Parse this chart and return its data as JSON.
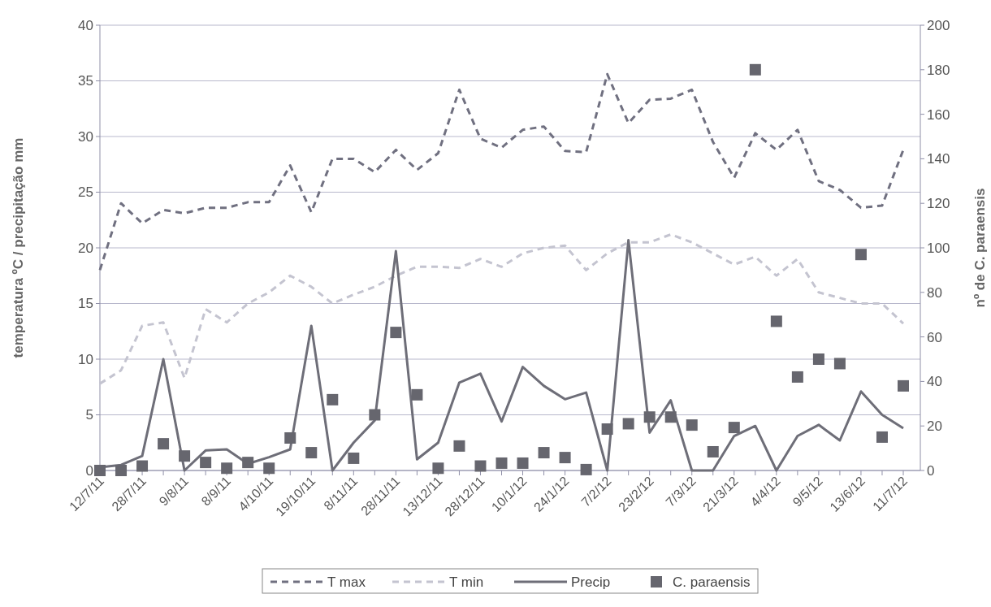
{
  "chart_data": {
    "type": "line",
    "ylabel": "temperatura ºC / precipitação mm",
    "y2label": "nº de C. paraensis",
    "categories": [
      "12/7/11",
      null,
      "28/7/11",
      null,
      "9/8/11",
      null,
      "8/9/11",
      null,
      "4/10/11",
      null,
      "19/10/11",
      null,
      "8/11/11",
      null,
      "28/11/11",
      null,
      "13/12/11",
      null,
      "28/12/11",
      null,
      "10/1/12",
      null,
      "24/1/12",
      null,
      "7/2/12",
      null,
      "23/2/12",
      null,
      "7/3/12",
      null,
      "21/3/12",
      null,
      "4/4/12",
      null,
      "9/5/12",
      null,
      "13/6/12",
      null,
      "11/7/12"
    ],
    "ylim": [
      0,
      40
    ],
    "yticks": [
      0,
      5,
      10,
      15,
      20,
      25,
      30,
      35,
      40
    ],
    "y2lim": [
      0,
      200
    ],
    "y2ticks": [
      0,
      20,
      40,
      60,
      80,
      100,
      120,
      140,
      160,
      180,
      200
    ],
    "grid": "y",
    "legend": "bottom",
    "series": [
      {
        "name": "T max",
        "color": "#707080",
        "line_style": "dashed",
        "values": [
          18,
          24,
          22.2,
          23.4,
          23.1,
          23.6,
          23.6,
          24.1,
          24.1,
          27.4,
          23.2,
          28,
          28,
          26.8,
          28.8,
          27,
          28.5,
          34.2,
          29.8,
          29,
          30.6,
          30.9,
          28.7,
          28.6,
          35.6,
          31.2,
          33.3,
          33.4,
          34.2,
          29.5,
          26.3,
          30.3,
          28.8,
          30.6,
          26,
          25.2,
          23.6,
          23.8,
          28.8
        ]
      },
      {
        "name": "T min",
        "color": "#c4c4d0",
        "line_style": "dashed",
        "values": [
          7.8,
          9,
          13,
          13.3,
          8.3,
          14.5,
          13.3,
          15,
          16,
          17.5,
          16.5,
          15,
          15.8,
          16.5,
          17.5,
          18.3,
          18.3,
          18.2,
          19,
          18.3,
          19.5,
          20,
          20.2,
          18,
          19.5,
          20.5,
          20.5,
          21.2,
          20.5,
          19.5,
          18.5,
          19.2,
          17.5,
          19,
          16,
          15.5,
          15,
          15,
          13.2
        ]
      },
      {
        "name": "Precip",
        "color": "#6e6e78",
        "line_style": "solid",
        "values": [
          0.3,
          0.5,
          1.3,
          10,
          0,
          1.8,
          1.9,
          0.6,
          1.2,
          1.9,
          13,
          0,
          2.5,
          4.5,
          19.7,
          1,
          2.5,
          7.9,
          8.7,
          4.4,
          9.3,
          7.6,
          6.4,
          7,
          0,
          20.7,
          3.4,
          6.3,
          0,
          0,
          3.1,
          4,
          0,
          3.1,
          4.1,
          2.7,
          7.1,
          5,
          3.8
        ]
      },
      {
        "name": "C. paraensis",
        "type": "scatter",
        "axis": "y2",
        "color": "#66666e",
        "marker": "square",
        "values": [
          0,
          0,
          2,
          12,
          6.5,
          3.6,
          1,
          3.6,
          1,
          14.6,
          8,
          31.8,
          5.5,
          25,
          62,
          34,
          1,
          11,
          2,
          3.3,
          3.3,
          8,
          5.8,
          0.4,
          18.6,
          21,
          24,
          24,
          20.4,
          8.4,
          19.3,
          180,
          67,
          42,
          50,
          48,
          97,
          15,
          38
        ]
      }
    ]
  }
}
